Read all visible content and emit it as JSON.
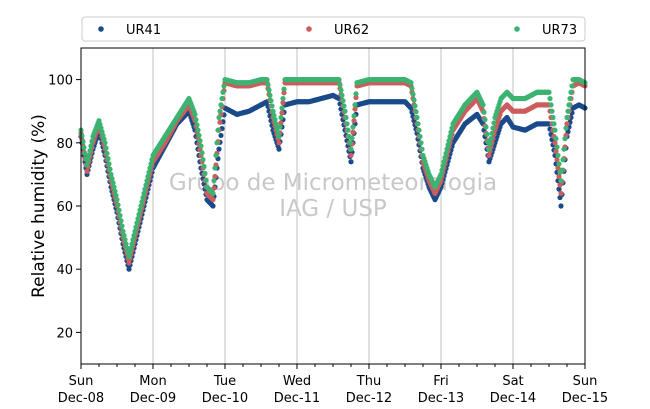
{
  "chart_data": {
    "type": "scatter",
    "title": "",
    "xlabel": "",
    "ylabel": "Relative humidity (%)",
    "ylim": [
      10,
      110
    ],
    "yticks": [
      20,
      40,
      60,
      80,
      100
    ],
    "xlim": [
      "2013-12-08 00:00",
      "2013-12-15 00:00"
    ],
    "xticks": [
      {
        "day": "Sun",
        "date": "Dec-08"
      },
      {
        "day": "Mon",
        "date": "Dec-09"
      },
      {
        "day": "Tue",
        "date": "Dec-10"
      },
      {
        "day": "Wed",
        "date": "Dec-11"
      },
      {
        "day": "Thu",
        "date": "Dec-12"
      },
      {
        "day": "Fri",
        "date": "Dec-13"
      },
      {
        "day": "Sat",
        "date": "Dec-14"
      },
      {
        "day": "Sun",
        "date": "Dec-15"
      }
    ],
    "grid": "vertical lines at day ticks",
    "legend_position": "top, above plot, 3 columns",
    "watermark": [
      "Grupo de Micrometeorologia",
      "IAG / USP"
    ],
    "series": [
      {
        "name": "UR41",
        "color": "#1a4a8a",
        "x": [
          "2013-12-08 00:00",
          "2013-12-08 02:00",
          "2013-12-08 04:00",
          "2013-12-08 06:00",
          "2013-12-08 08:00",
          "2013-12-08 10:00",
          "2013-12-08 12:00",
          "2013-12-08 14:00",
          "2013-12-08 16:00",
          "2013-12-08 18:00",
          "2013-12-08 20:00",
          "2013-12-08 22:00",
          "2013-12-09 00:00",
          "2013-12-09 04:00",
          "2013-12-09 08:00",
          "2013-12-09 12:00",
          "2013-12-09 14:00",
          "2013-12-09 16:00",
          "2013-12-09 18:00",
          "2013-12-09 20:00",
          "2013-12-09 22:00",
          "2013-12-10 00:00",
          "2013-12-10 04:00",
          "2013-12-10 08:00",
          "2013-12-10 12:00",
          "2013-12-10 14:00",
          "2013-12-10 16:00",
          "2013-12-10 18:00",
          "2013-12-10 20:00",
          "2013-12-11 00:00",
          "2013-12-11 04:00",
          "2013-12-11 08:00",
          "2013-12-11 12:00",
          "2013-12-11 14:00",
          "2013-12-11 16:00",
          "2013-12-11 18:00",
          "2013-12-11 20:00",
          "2013-12-12 00:00",
          "2013-12-12 04:00",
          "2013-12-12 08:00",
          "2013-12-12 12:00",
          "2013-12-12 14:00",
          "2013-12-12 16:00",
          "2013-12-12 18:00",
          "2013-12-12 20:00",
          "2013-12-12 22:00",
          "2013-12-13 00:00",
          "2013-12-13 04:00",
          "2013-12-13 08:00",
          "2013-12-13 12:00",
          "2013-12-13 14:00",
          "2013-12-13 16:00",
          "2013-12-13 18:00",
          "2013-12-13 20:00",
          "2013-12-13 22:00",
          "2013-12-14 00:00",
          "2013-12-14 04:00",
          "2013-12-14 08:00",
          "2013-12-14 12:00",
          "2013-12-14 14:00",
          "2013-12-14 16:00",
          "2013-12-14 18:00",
          "2013-12-14 20:00",
          "2013-12-14 22:00",
          "2013-12-15 00:00"
        ],
        "y": [
          82,
          70,
          78,
          84,
          76,
          66,
          58,
          48,
          40,
          48,
          56,
          64,
          72,
          79,
          86,
          90,
          84,
          72,
          62,
          60,
          78,
          91,
          89,
          90,
          92,
          93,
          84,
          78,
          92,
          93,
          93,
          94,
          95,
          94,
          84,
          74,
          92,
          93,
          93,
          93,
          93,
          91,
          83,
          72,
          66,
          62,
          66,
          80,
          86,
          89,
          86,
          74,
          80,
          86,
          88,
          85,
          84,
          86,
          86,
          76,
          60,
          82,
          91,
          92,
          91
        ]
      },
      {
        "name": "UR62",
        "color": "#cd5c5c",
        "x": [
          "2013-12-08 00:00",
          "2013-12-08 02:00",
          "2013-12-08 04:00",
          "2013-12-08 06:00",
          "2013-12-08 08:00",
          "2013-12-08 10:00",
          "2013-12-08 12:00",
          "2013-12-08 14:00",
          "2013-12-08 16:00",
          "2013-12-08 18:00",
          "2013-12-08 20:00",
          "2013-12-08 22:00",
          "2013-12-09 00:00",
          "2013-12-09 04:00",
          "2013-12-09 08:00",
          "2013-12-09 12:00",
          "2013-12-09 14:00",
          "2013-12-09 16:00",
          "2013-12-09 18:00",
          "2013-12-09 20:00",
          "2013-12-09 22:00",
          "2013-12-10 00:00",
          "2013-12-10 04:00",
          "2013-12-10 08:00",
          "2013-12-10 12:00",
          "2013-12-10 14:00",
          "2013-12-10 16:00",
          "2013-12-10 18:00",
          "2013-12-10 20:00",
          "2013-12-11 00:00",
          "2013-12-11 04:00",
          "2013-12-11 08:00",
          "2013-12-11 12:00",
          "2013-12-11 14:00",
          "2013-12-11 16:00",
          "2013-12-11 18:00",
          "2013-12-11 20:00",
          "2013-12-12 00:00",
          "2013-12-12 04:00",
          "2013-12-12 08:00",
          "2013-12-12 12:00",
          "2013-12-12 14:00",
          "2013-12-12 16:00",
          "2013-12-12 18:00",
          "2013-12-12 20:00",
          "2013-12-12 22:00",
          "2013-12-13 00:00",
          "2013-12-13 04:00",
          "2013-12-13 08:00",
          "2013-12-13 12:00",
          "2013-12-13 14:00",
          "2013-12-13 16:00",
          "2013-12-13 18:00",
          "2013-12-13 20:00",
          "2013-12-13 22:00",
          "2013-12-14 00:00",
          "2013-12-14 04:00",
          "2013-12-14 08:00",
          "2013-12-14 12:00",
          "2013-12-14 14:00",
          "2013-12-14 16:00",
          "2013-12-14 18:00",
          "2013-12-14 20:00",
          "2013-12-14 22:00",
          "2013-12-15 00:00"
        ],
        "y": [
          83,
          71,
          80,
          86,
          78,
          68,
          60,
          50,
          42,
          50,
          58,
          66,
          74,
          80,
          87,
          92,
          87,
          76,
          64,
          62,
          84,
          99,
          98,
          98,
          99,
          99,
          88,
          80,
          99,
          99,
          99,
          99,
          99,
          99,
          88,
          76,
          98,
          99,
          99,
          99,
          99,
          98,
          86,
          74,
          68,
          64,
          68,
          84,
          90,
          94,
          90,
          76,
          84,
          90,
          92,
          90,
          90,
          92,
          92,
          80,
          64,
          86,
          98,
          99,
          98
        ]
      },
      {
        "name": "UR73",
        "color": "#3cb371",
        "x": [
          "2013-12-08 00:00",
          "2013-12-08 02:00",
          "2013-12-08 04:00",
          "2013-12-08 06:00",
          "2013-12-08 08:00",
          "2013-12-08 10:00",
          "2013-12-08 12:00",
          "2013-12-08 14:00",
          "2013-12-08 16:00",
          "2013-12-08 18:00",
          "2013-12-08 20:00",
          "2013-12-08 22:00",
          "2013-12-09 00:00",
          "2013-12-09 04:00",
          "2013-12-09 08:00",
          "2013-12-09 12:00",
          "2013-12-09 14:00",
          "2013-12-09 16:00",
          "2013-12-09 18:00",
          "2013-12-09 20:00",
          "2013-12-09 22:00",
          "2013-12-10 00:00",
          "2013-12-10 04:00",
          "2013-12-10 08:00",
          "2013-12-10 12:00",
          "2013-12-10 14:00",
          "2013-12-10 16:00",
          "2013-12-10 18:00",
          "2013-12-10 20:00",
          "2013-12-11 00:00",
          "2013-12-11 04:00",
          "2013-12-11 08:00",
          "2013-12-11 12:00",
          "2013-12-11 14:00",
          "2013-12-11 16:00",
          "2013-12-11 18:00",
          "2013-12-11 20:00",
          "2013-12-12 00:00",
          "2013-12-12 04:00",
          "2013-12-12 08:00",
          "2013-12-12 12:00",
          "2013-12-12 14:00",
          "2013-12-12 16:00",
          "2013-12-12 18:00",
          "2013-12-12 20:00",
          "2013-12-12 22:00",
          "2013-12-13 00:00",
          "2013-12-13 04:00",
          "2013-12-13 08:00",
          "2013-12-13 12:00",
          "2013-12-13 14:00",
          "2013-12-13 16:00",
          "2013-12-13 18:00",
          "2013-12-13 20:00",
          "2013-12-13 22:00",
          "2013-12-14 00:00",
          "2013-12-14 04:00",
          "2013-12-14 08:00",
          "2013-12-14 12:00",
          "2013-12-14 14:00",
          "2013-12-14 16:00",
          "2013-12-14 18:00",
          "2013-12-14 20:00",
          "2013-12-14 22:00",
          "2013-12-15 00:00"
        ],
        "y": [
          84,
          73,
          82,
          87,
          80,
          70,
          62,
          52,
          44,
          52,
          60,
          68,
          76,
          82,
          88,
          94,
          89,
          79,
          66,
          64,
          88,
          100,
          99,
          99,
          100,
          100,
          90,
          82,
          100,
          100,
          100,
          100,
          100,
          100,
          90,
          78,
          99,
          100,
          100,
          100,
          100,
          99,
          88,
          76,
          70,
          66,
          70,
          86,
          92,
          96,
          92,
          78,
          88,
          94,
          96,
          94,
          94,
          96,
          96,
          84,
          68,
          88,
          100,
          100,
          99
        ]
      }
    ]
  }
}
